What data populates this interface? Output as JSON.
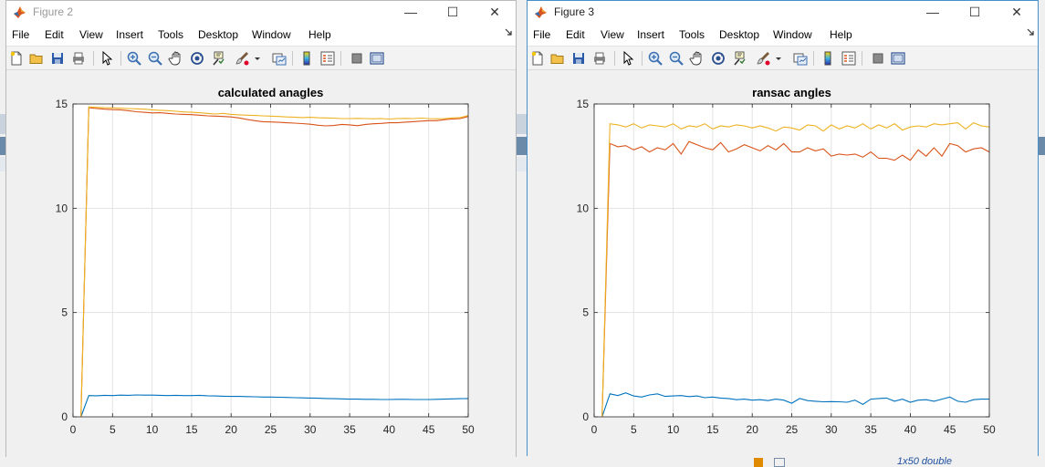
{
  "figures": [
    {
      "window_title": "Figure 2",
      "window_controls": {
        "minimize": "—",
        "maximize": "☐",
        "close": "✕"
      },
      "menu": [
        "File",
        "Edit",
        "View",
        "Insert",
        "Tools",
        "Desktop",
        "Window",
        "Help"
      ],
      "toolbar_icons": [
        "new-figure-icon",
        "open-file-icon",
        "save-icon",
        "print-icon",
        "pointer-icon",
        "zoom-in-icon",
        "zoom-out-icon",
        "pan-icon",
        "rotate-3d-icon",
        "data-cursor-icon",
        "brush-icon",
        "brush-dropdown-icon",
        "link-plot-icon",
        "colorbar-icon",
        "legend-icon",
        "hide-plot-tools-icon",
        "show-plot-tools-icon"
      ],
      "chart_data": {
        "type": "line",
        "title": "calculated anagles",
        "xlabel": "",
        "ylabel": "",
        "xlim": [
          0,
          50
        ],
        "ylim": [
          0,
          15
        ],
        "x_ticks": [
          0,
          5,
          10,
          15,
          20,
          25,
          30,
          35,
          40,
          45,
          50
        ],
        "y_ticks": [
          0,
          5,
          10,
          15
        ],
        "grid": true,
        "x": [
          1,
          2,
          3,
          4,
          5,
          6,
          7,
          8,
          9,
          10,
          11,
          12,
          13,
          14,
          15,
          16,
          17,
          18,
          19,
          20,
          21,
          22,
          23,
          24,
          25,
          26,
          27,
          28,
          29,
          30,
          31,
          32,
          33,
          34,
          35,
          36,
          37,
          38,
          39,
          40,
          41,
          42,
          43,
          44,
          45,
          46,
          47,
          48,
          49,
          50
        ],
        "series": [
          {
            "color": "#0072bd",
            "values": [
              0,
              1.02,
              1.01,
              1.03,
              1.02,
              1.04,
              1.03,
              1.05,
              1.04,
              1.04,
              1.03,
              1.02,
              1.03,
              1.02,
              1.02,
              1.03,
              1.01,
              1.0,
              0.99,
              0.98,
              0.98,
              0.97,
              0.96,
              0.95,
              0.95,
              0.94,
              0.93,
              0.92,
              0.91,
              0.9,
              0.89,
              0.88,
              0.87,
              0.86,
              0.85,
              0.85,
              0.84,
              0.84,
              0.83,
              0.83,
              0.84,
              0.84,
              0.83,
              0.83,
              0.83,
              0.84,
              0.85,
              0.86,
              0.87,
              0.88
            ]
          },
          {
            "color": "#d95319",
            "values": [
              0,
              14.82,
              14.78,
              14.75,
              14.73,
              14.72,
              14.68,
              14.63,
              14.6,
              14.57,
              14.58,
              14.55,
              14.52,
              14.5,
              14.49,
              14.46,
              14.43,
              14.42,
              14.4,
              14.38,
              14.33,
              14.26,
              14.2,
              14.15,
              14.14,
              14.12,
              14.1,
              14.08,
              14.06,
              14.03,
              13.98,
              13.95,
              13.97,
              14.02,
              14.0,
              13.96,
              14.02,
              14.05,
              14.07,
              14.1,
              14.1,
              14.13,
              14.15,
              14.18,
              14.2,
              14.2,
              14.25,
              14.28,
              14.3,
              14.4
            ]
          },
          {
            "color": "#edb120",
            "values": [
              0,
              14.86,
              14.84,
              14.82,
              14.81,
              14.8,
              14.78,
              14.77,
              14.75,
              14.72,
              14.7,
              14.68,
              14.65,
              14.62,
              14.6,
              14.58,
              14.55,
              14.52,
              14.55,
              14.5,
              14.48,
              14.46,
              14.45,
              14.43,
              14.42,
              14.4,
              14.38,
              14.37,
              14.35,
              14.36,
              14.34,
              14.33,
              14.32,
              14.3,
              14.3,
              14.31,
              14.3,
              14.29,
              14.3,
              14.28,
              14.3,
              14.31,
              14.3,
              14.32,
              14.3,
              14.29,
              14.3,
              14.33,
              14.35,
              14.45
            ]
          }
        ]
      }
    },
    {
      "window_title": "Figure 3",
      "window_controls": {
        "minimize": "—",
        "maximize": "☐",
        "close": "✕"
      },
      "menu": [
        "File",
        "Edit",
        "View",
        "Insert",
        "Tools",
        "Desktop",
        "Window",
        "Help"
      ],
      "toolbar_icons": [
        "new-figure-icon",
        "open-file-icon",
        "save-icon",
        "print-icon",
        "pointer-icon",
        "zoom-in-icon",
        "zoom-out-icon",
        "pan-icon",
        "rotate-3d-icon",
        "data-cursor-icon",
        "brush-icon",
        "brush-dropdown-icon",
        "link-plot-icon",
        "colorbar-icon",
        "legend-icon",
        "hide-plot-tools-icon",
        "show-plot-tools-icon"
      ],
      "chart_data": {
        "type": "line",
        "title": "ransac angles",
        "xlabel": "",
        "ylabel": "",
        "xlim": [
          0,
          50
        ],
        "ylim": [
          0,
          15
        ],
        "x_ticks": [
          0,
          5,
          10,
          15,
          20,
          25,
          30,
          35,
          40,
          45,
          50
        ],
        "y_ticks": [
          0,
          5,
          10,
          15
        ],
        "grid": true,
        "x": [
          1,
          2,
          3,
          4,
          5,
          6,
          7,
          8,
          9,
          10,
          11,
          12,
          13,
          14,
          15,
          16,
          17,
          18,
          19,
          20,
          21,
          22,
          23,
          24,
          25,
          26,
          27,
          28,
          29,
          30,
          31,
          32,
          33,
          34,
          35,
          36,
          37,
          38,
          39,
          40,
          41,
          42,
          43,
          44,
          45,
          46,
          47,
          48,
          49,
          50
        ],
        "series": [
          {
            "color": "#0072bd",
            "values": [
              0,
              1.1,
              1.02,
              1.15,
              1.0,
              0.95,
              1.05,
              1.1,
              0.98,
              1.0,
              1.02,
              0.97,
              1.0,
              0.92,
              0.95,
              0.9,
              0.88,
              0.82,
              0.85,
              0.8,
              0.82,
              0.78,
              0.85,
              0.8,
              0.65,
              0.88,
              0.78,
              0.75,
              0.72,
              0.73,
              0.72,
              0.7,
              0.8,
              0.6,
              0.85,
              0.88,
              0.9,
              0.75,
              0.85,
              0.7,
              0.8,
              0.82,
              0.75,
              0.85,
              0.95,
              0.75,
              0.7,
              0.82,
              0.85,
              0.85
            ]
          },
          {
            "color": "#d95319",
            "values": [
              0,
              13.1,
              12.95,
              13.0,
              12.8,
              12.95,
              12.7,
              12.9,
              12.8,
              13.1,
              12.6,
              13.2,
              13.05,
              12.9,
              12.8,
              13.15,
              12.7,
              12.85,
              13.05,
              12.9,
              12.75,
              13.0,
              12.8,
              13.1,
              12.7,
              12.7,
              12.9,
              12.75,
              12.85,
              12.5,
              12.6,
              12.55,
              12.6,
              12.45,
              12.7,
              12.4,
              12.4,
              12.3,
              12.55,
              12.3,
              12.8,
              12.5,
              12.9,
              12.5,
              13.1,
              13.0,
              12.7,
              12.85,
              12.9,
              12.7
            ]
          },
          {
            "color": "#edb120",
            "values": [
              0,
              14.05,
              14.0,
              13.9,
              14.05,
              13.85,
              14.0,
              13.95,
              13.9,
              14.05,
              13.8,
              13.95,
              13.9,
              14.05,
              13.8,
              13.95,
              13.9,
              14.0,
              13.95,
              13.85,
              13.95,
              13.85,
              13.7,
              13.9,
              13.85,
              13.75,
              14.0,
              13.95,
              13.7,
              14.0,
              13.8,
              13.95,
              13.85,
              14.05,
              13.8,
              14.0,
              13.85,
              14.05,
              13.75,
              13.9,
              13.95,
              13.9,
              14.05,
              14.0,
              14.05,
              14.1,
              13.8,
              14.1,
              13.95,
              13.9
            ]
          }
        ]
      }
    }
  ],
  "background": {
    "workspace_value": "1x50 double"
  }
}
